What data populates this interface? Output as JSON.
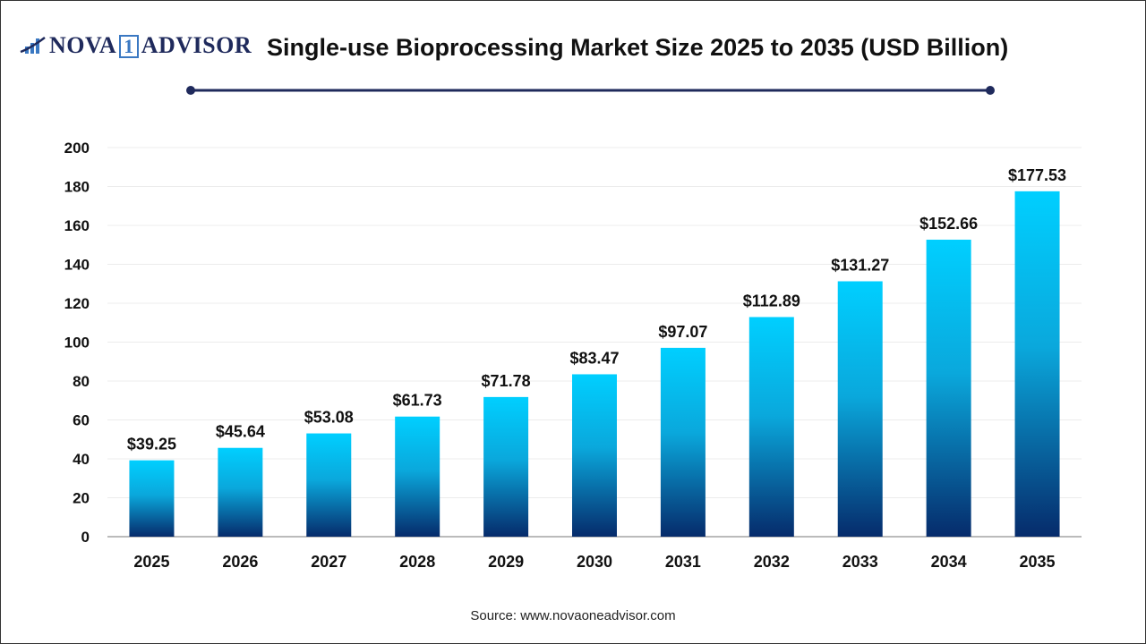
{
  "logo": {
    "text": "NOVA 1 ADVISOR"
  },
  "title": "Single-use Bioprocessing Market Size 2025 to 2035 (USD Billion)",
  "source": "Source: www.novaoneadvisor.com",
  "colors": {
    "bar_top": "#00cfff",
    "bar_bottom": "#062b6b",
    "title_line": "#1f2a5c"
  },
  "chart_data": {
    "type": "bar",
    "title": "Single-use Bioprocessing Market Size 2025 to 2035 (USD Billion)",
    "categories": [
      "2025",
      "2026",
      "2027",
      "2028",
      "2029",
      "2030",
      "2031",
      "2032",
      "2033",
      "2034",
      "2035"
    ],
    "values": [
      39.25,
      45.64,
      53.08,
      61.73,
      71.78,
      83.47,
      97.07,
      112.89,
      131.27,
      152.66,
      177.53
    ],
    "data_labels": [
      "$39.25",
      "$45.64",
      "$53.08",
      "$61.73",
      "$71.78",
      "$83.47",
      "$97.07",
      "$112.89",
      "$131.27",
      "$152.66",
      "$177.53"
    ],
    "yticks": [
      0,
      20,
      40,
      60,
      80,
      100,
      120,
      140,
      160,
      180,
      200
    ],
    "ylim": [
      0,
      200
    ],
    "grid": true,
    "xlabel": "",
    "ylabel": ""
  }
}
